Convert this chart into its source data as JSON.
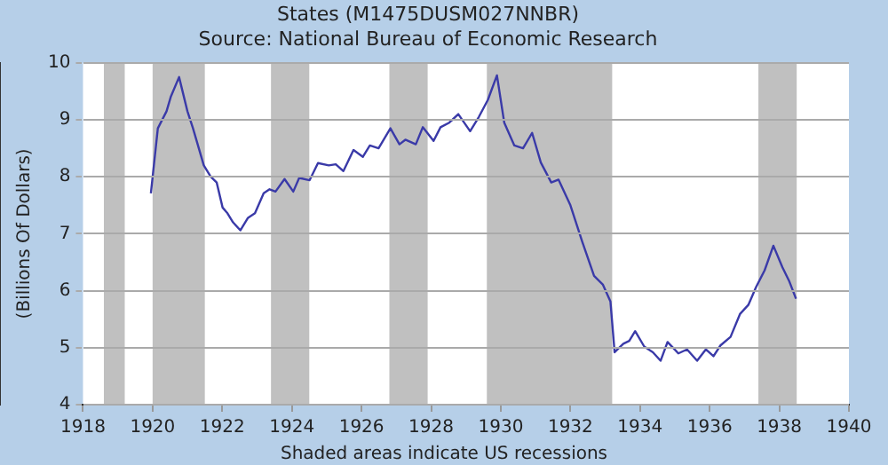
{
  "chart_data": {
    "type": "line",
    "title": "States (M1475DUSM027NNBR)",
    "subtitle": "Source: National Bureau of Economic Research",
    "ylabel": "(Billions Of Dollars)",
    "annotations": [
      "Shaded areas indicate US recessions"
    ],
    "x": [
      1919.95,
      1920.15,
      1920.4,
      1920.52,
      1920.76,
      1921.0,
      1921.16,
      1921.47,
      1921.67,
      1921.84,
      1922.01,
      1922.15,
      1922.31,
      1922.52,
      1922.74,
      1922.94,
      1923.19,
      1923.36,
      1923.53,
      1923.79,
      1924.04,
      1924.21,
      1924.51,
      1924.75,
      1925.06,
      1925.26,
      1925.48,
      1925.77,
      1926.04,
      1926.24,
      1926.49,
      1926.83,
      1927.09,
      1927.26,
      1927.56,
      1927.76,
      1928.07,
      1928.27,
      1928.52,
      1928.78,
      1929.12,
      1929.37,
      1929.63,
      1929.89,
      1930.1,
      1930.39,
      1930.64,
      1930.9,
      1931.15,
      1931.45,
      1931.66,
      1932.0,
      1932.34,
      1932.68,
      1932.93,
      1933.15,
      1933.27,
      1933.52,
      1933.69,
      1933.86,
      1934.12,
      1934.37,
      1934.59,
      1934.79,
      1935.1,
      1935.35,
      1935.64,
      1935.89,
      1936.11,
      1936.31,
      1936.6,
      1936.87,
      1937.11,
      1937.33,
      1937.58,
      1937.83,
      1938.09,
      1938.29,
      1938.48
    ],
    "series": [
      {
        "color": "#3a3aa8",
        "values": [
          7.71,
          8.85,
          9.15,
          9.4,
          9.75,
          9.15,
          8.85,
          8.2,
          8.0,
          7.9,
          7.46,
          7.36,
          7.2,
          7.06,
          7.28,
          7.36,
          7.71,
          7.78,
          7.74,
          7.96,
          7.74,
          7.98,
          7.94,
          8.24,
          8.2,
          8.22,
          8.1,
          8.47,
          8.35,
          8.55,
          8.5,
          8.85,
          8.57,
          8.65,
          8.57,
          8.87,
          8.63,
          8.87,
          8.95,
          9.1,
          8.8,
          9.05,
          9.35,
          9.78,
          8.95,
          8.55,
          8.5,
          8.77,
          8.25,
          7.9,
          7.95,
          7.5,
          6.86,
          6.26,
          6.11,
          5.81,
          4.92,
          5.07,
          5.12,
          5.29,
          5.02,
          4.92,
          4.77,
          5.1,
          4.9,
          4.97,
          4.77,
          4.97,
          4.85,
          5.04,
          5.19,
          5.59,
          5.75,
          6.06,
          6.36,
          6.79,
          6.41,
          6.16,
          5.86
        ]
      }
    ],
    "xlim": [
      1918,
      1940
    ],
    "xticks": [
      1918,
      1920,
      1922,
      1924,
      1926,
      1928,
      1930,
      1932,
      1934,
      1936,
      1938,
      1940
    ],
    "ylim": [
      4,
      10
    ],
    "yticks": [
      4,
      5,
      6,
      7,
      8,
      9,
      10
    ],
    "bands": [
      {
        "axis": "x",
        "from": 1918.6,
        "to": 1919.2,
        "color": "#c0c0c0"
      },
      {
        "axis": "x",
        "from": 1920.0,
        "to": 1921.5,
        "color": "#c0c0c0"
      },
      {
        "axis": "x",
        "from": 1923.4,
        "to": 1924.5,
        "color": "#c0c0c0"
      },
      {
        "axis": "x",
        "from": 1926.8,
        "to": 1927.9,
        "color": "#c0c0c0"
      },
      {
        "axis": "x",
        "from": 1929.6,
        "to": 1933.2,
        "color": "#c0c0c0"
      },
      {
        "axis": "x",
        "from": 1937.4,
        "to": 1938.5,
        "color": "#c0c0c0"
      }
    ],
    "grid": "y",
    "legend": false,
    "marker": "none",
    "line_style": "solid"
  }
}
